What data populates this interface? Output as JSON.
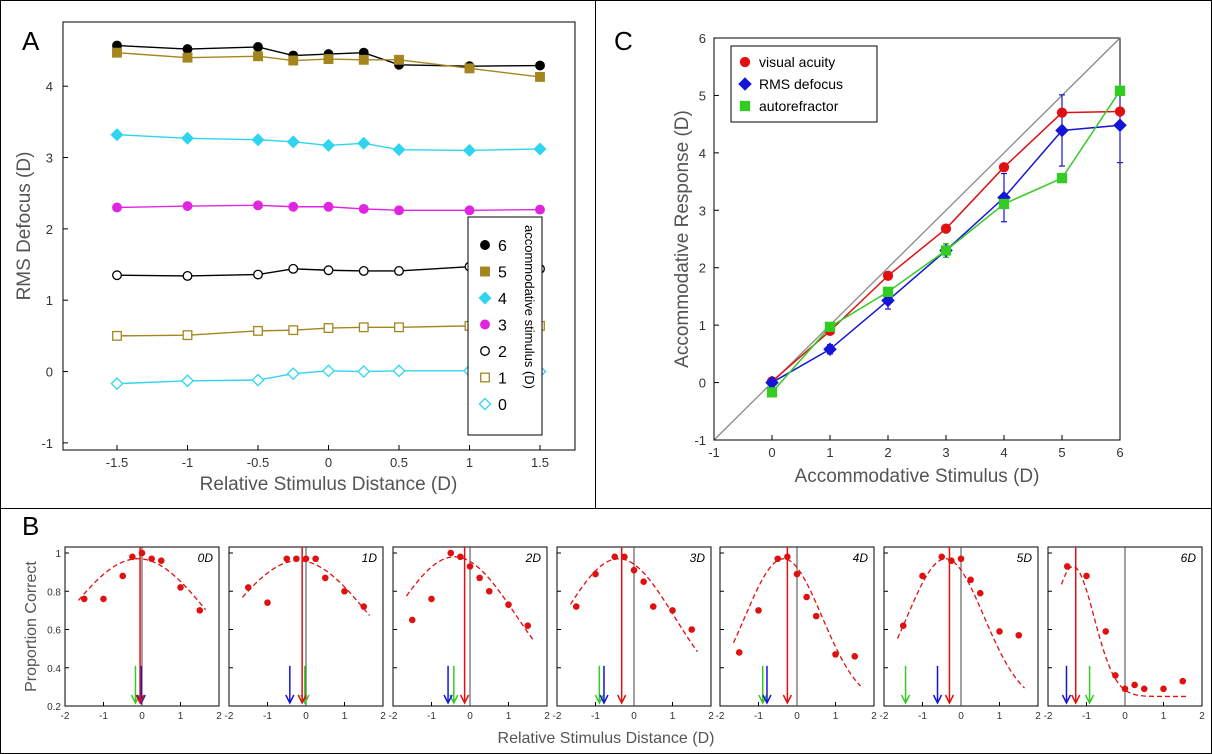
{
  "panel_letters": {
    "a": "A",
    "b": "B",
    "c": "C"
  },
  "chart_data": [
    {
      "panel": "A",
      "type": "line",
      "title": "",
      "xlabel": "Relative Stimulus Distance (D)",
      "ylabel": "RMS Defocus (D)",
      "xlim": [
        -1.5,
        1.5
      ],
      "ylim": [
        -1.1,
        4.9
      ],
      "xticks": [
        "-1.5",
        "-1",
        "-0.5",
        "0",
        "0.5",
        "1",
        "1.5"
      ],
      "yticks": [
        "-1",
        "0",
        "1",
        "2",
        "3",
        "4"
      ],
      "legend_title": "accommodative stimulus (D)",
      "legend_position": "right",
      "x": [
        -1.5,
        -1,
        -0.5,
        -0.25,
        0,
        0.25,
        0.5,
        1,
        1.5
      ],
      "series": [
        {
          "name": "6",
          "marker": "circle",
          "filled": true,
          "color": "#000000",
          "values": [
            4.57,
            4.52,
            4.55,
            4.43,
            4.45,
            4.47,
            4.3,
            4.28,
            4.29
          ]
        },
        {
          "name": "5",
          "marker": "square",
          "filled": true,
          "color": "#A5861E",
          "values": [
            4.47,
            4.4,
            4.42,
            4.36,
            4.38,
            4.37,
            4.37,
            4.25,
            4.13
          ]
        },
        {
          "name": "4",
          "marker": "diamond",
          "filled": true,
          "color": "#2FD5F0",
          "values": [
            3.32,
            3.27,
            3.25,
            3.22,
            3.17,
            3.2,
            3.11,
            3.1,
            3.12
          ]
        },
        {
          "name": "3",
          "marker": "circle",
          "filled": true,
          "color": "#E024E0",
          "values": [
            2.3,
            2.32,
            2.33,
            2.31,
            2.31,
            2.28,
            2.26,
            2.26,
            2.27
          ]
        },
        {
          "name": "2",
          "marker": "circle",
          "filled": false,
          "color": "#000000",
          "values": [
            1.35,
            1.34,
            1.36,
            1.44,
            1.42,
            1.41,
            1.41,
            1.47,
            1.44
          ]
        },
        {
          "name": "1",
          "marker": "square",
          "filled": false,
          "color": "#A5861E",
          "values": [
            0.5,
            0.51,
            0.57,
            0.58,
            0.61,
            0.62,
            0.62,
            0.64,
            0.64
          ]
        },
        {
          "name": "0",
          "marker": "diamond",
          "filled": false,
          "color": "#2FD5F0",
          "values": [
            -0.17,
            -0.13,
            -0.12,
            -0.03,
            0.01,
            0.0,
            0.01,
            0.01,
            0.0
          ]
        }
      ]
    },
    {
      "panel": "C",
      "type": "line",
      "title": "",
      "xlabel": "Accommodative Stimulus (D)",
      "ylabel": "Accommodative Response (D)",
      "xlim": [
        -1,
        6
      ],
      "ylim": [
        -1,
        6
      ],
      "xticks": [
        "-1",
        "0",
        "1",
        "2",
        "3",
        "4",
        "5",
        "6"
      ],
      "yticks": [
        "-1",
        "0",
        "1",
        "2",
        "3",
        "4",
        "5",
        "6"
      ],
      "legend_position": "top-left",
      "x": [
        0,
        1,
        2,
        3,
        4,
        5,
        6
      ],
      "series": [
        {
          "name": "visual acuity",
          "marker": "circle",
          "color": "#E01010",
          "values": [
            0.02,
            0.9,
            1.86,
            2.68,
            3.75,
            4.7,
            4.72
          ],
          "err": [
            0,
            0,
            0,
            0,
            0,
            0,
            0
          ]
        },
        {
          "name": "RMS defocus",
          "marker": "diamond",
          "color": "#1515D8",
          "values": [
            0.0,
            0.58,
            1.43,
            2.3,
            3.22,
            4.39,
            4.48
          ],
          "err": [
            0.08,
            0.08,
            0.15,
            0.12,
            0.42,
            0.62,
            0.65
          ]
        },
        {
          "name": "autorefractor",
          "marker": "square",
          "color": "#33CC22",
          "values": [
            -0.17,
            0.97,
            1.58,
            2.3,
            3.11,
            3.56,
            5.08
          ],
          "err": [
            0.04,
            0.04,
            0.04,
            0.12,
            0.05,
            0.06,
            0.06
          ]
        }
      ]
    },
    {
      "panel": "B",
      "type": "scatter",
      "title": "",
      "xlabel": "Relative Stimulus Distance (D)",
      "ylabel": "Proportion Correct",
      "xlim": [
        -2,
        2
      ],
      "ylim": [
        0.2,
        1.0
      ],
      "xticks": [
        "-2",
        "-1",
        "0",
        "1",
        "2"
      ],
      "yticks": [
        "0.2",
        "0.4",
        "0.6",
        "0.8",
        "1"
      ],
      "arrow_colors": {
        "visual_acuity": "#E01010",
        "rms_defocus": "#1515D8",
        "autorefractor": "#33CC22"
      },
      "subplots": [
        {
          "label": "0D",
          "x": [
            -1.5,
            -1,
            -0.5,
            -0.25,
            0,
            0.25,
            0.5,
            1,
            1.5
          ],
          "y": [
            0.76,
            0.76,
            0.88,
            0.98,
            1.0,
            0.97,
            0.96,
            0.82,
            0.7
          ],
          "fit_peak_x": -0.1,
          "fit_peak_y": 0.97,
          "fit_width": 1.9,
          "fit_floor": 0.2,
          "arrows": {
            "visual_acuity": -0.05,
            "rms_defocus": -0.02,
            "autorefractor": -0.17
          }
        },
        {
          "label": "1D",
          "x": [
            -1.5,
            -1,
            -0.5,
            -0.25,
            0,
            0.25,
            0.5,
            1,
            1.5
          ],
          "y": [
            0.82,
            0.74,
            0.97,
            0.97,
            0.97,
            0.97,
            0.87,
            0.8,
            0.72
          ],
          "fit_peak_x": -0.2,
          "fit_peak_y": 0.96,
          "fit_width": 1.9,
          "fit_floor": 0.2,
          "arrows": {
            "visual_acuity": -0.1,
            "rms_defocus": -0.42,
            "autorefractor": -0.03
          }
        },
        {
          "label": "2D",
          "x": [
            -1.5,
            -1,
            -0.5,
            -0.25,
            0,
            0.25,
            0.5,
            1,
            1.5
          ],
          "y": [
            0.65,
            0.76,
            1.0,
            0.98,
            0.93,
            0.87,
            0.8,
            0.73,
            0.62
          ],
          "fit_peak_x": -0.4,
          "fit_peak_y": 0.98,
          "fit_width": 1.6,
          "fit_floor": 0.2,
          "arrows": {
            "visual_acuity": -0.14,
            "rms_defocus": -0.57,
            "autorefractor": -0.42
          }
        },
        {
          "label": "3D",
          "x": [
            -1.5,
            -1,
            -0.5,
            -0.25,
            0,
            0.25,
            0.5,
            1,
            1.5
          ],
          "y": [
            0.72,
            0.89,
            0.98,
            0.98,
            0.91,
            0.85,
            0.72,
            0.7,
            0.6
          ],
          "fit_peak_x": -0.4,
          "fit_peak_y": 0.97,
          "fit_width": 1.45,
          "fit_floor": 0.2,
          "arrows": {
            "visual_acuity": -0.32,
            "rms_defocus": -0.78,
            "autorefractor": -0.9
          }
        },
        {
          "label": "4D",
          "x": [
            -1.5,
            -1,
            -0.5,
            -0.25,
            0,
            0.25,
            0.5,
            1,
            1.5
          ],
          "y": [
            0.48,
            0.7,
            0.97,
            0.98,
            0.89,
            0.77,
            0.67,
            0.47,
            0.46
          ],
          "fit_peak_x": -0.35,
          "fit_peak_y": 0.97,
          "fit_width": 1.0,
          "fit_floor": 0.2,
          "arrows": {
            "visual_acuity": -0.25,
            "rms_defocus": -0.78,
            "autorefractor": -0.89
          }
        },
        {
          "label": "5D",
          "x": [
            -1.5,
            -1,
            -0.5,
            -0.25,
            0,
            0.25,
            0.5,
            1,
            1.5
          ],
          "y": [
            0.62,
            0.88,
            0.98,
            0.96,
            0.97,
            0.86,
            0.79,
            0.59,
            0.57
          ],
          "fit_peak_x": -0.4,
          "fit_peak_y": 0.97,
          "fit_width": 1.0,
          "fit_floor": 0.2,
          "arrows": {
            "visual_acuity": -0.3,
            "rms_defocus": -0.61,
            "autorefractor": -1.44
          }
        },
        {
          "label": "6D",
          "x": [
            -1.5,
            -1,
            -0.5,
            -0.25,
            0,
            0.25,
            0.5,
            1,
            1.5
          ],
          "y": [
            0.93,
            0.88,
            0.59,
            0.36,
            0.29,
            0.31,
            0.29,
            0.29,
            0.33
          ],
          "fit_peak_x": -1.35,
          "fit_peak_y": 0.93,
          "fit_width": 0.55,
          "fit_floor": 0.25,
          "arrows": {
            "visual_acuity": -1.28,
            "rms_defocus": -1.52,
            "autorefractor": -0.92
          }
        }
      ]
    }
  ]
}
